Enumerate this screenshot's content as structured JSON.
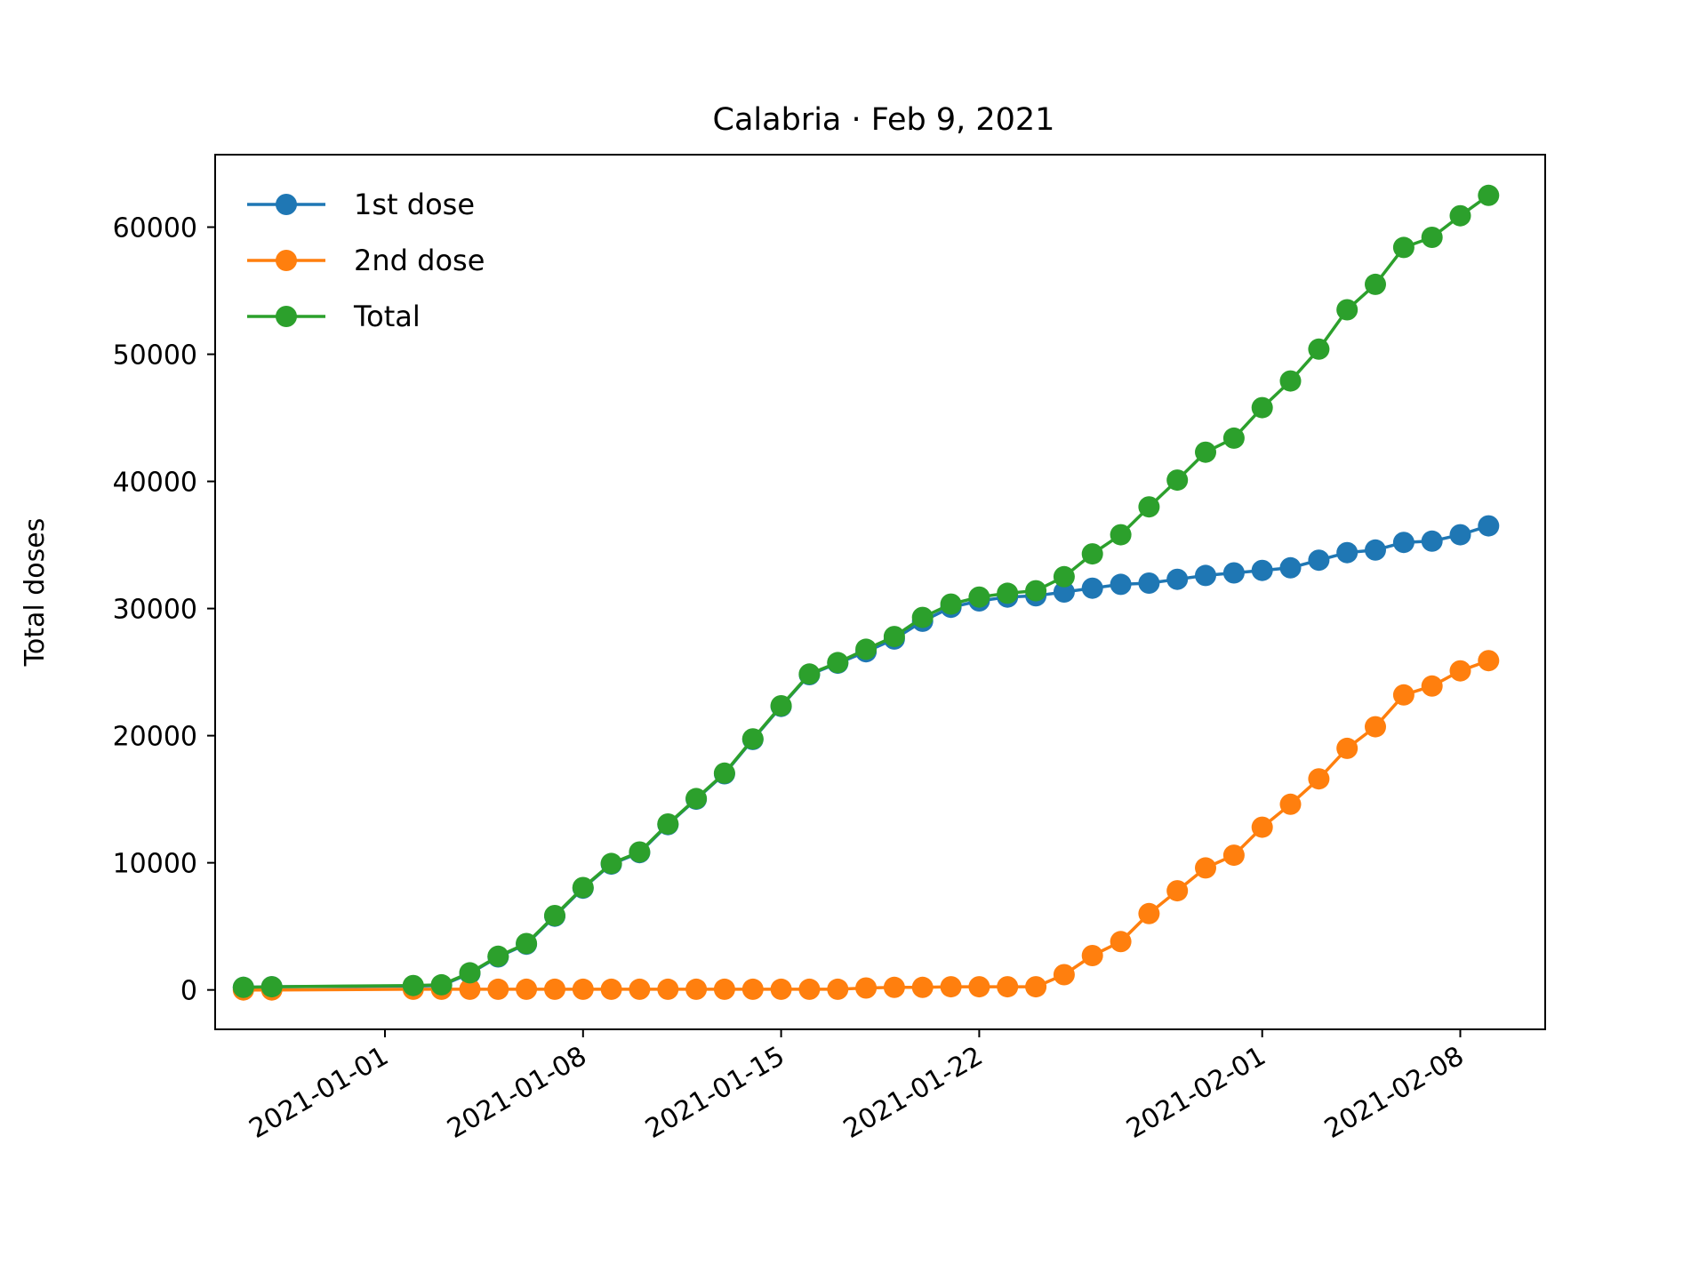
{
  "chart_data": {
    "type": "line",
    "title": "Calabria · Feb 9, 2021",
    "xlabel": "",
    "ylabel": "Total doses",
    "x_ticks": [
      "2021-01-01",
      "2021-01-08",
      "2021-01-15",
      "2021-01-22",
      "2021-02-01",
      "2021-02-08"
    ],
    "y_ticks": [
      0,
      10000,
      20000,
      30000,
      40000,
      50000,
      60000
    ],
    "xlim": [
      "2020-12-26",
      "2021-02-11"
    ],
    "ylim": [
      -3100,
      65700
    ],
    "grid": false,
    "legend_position": "top-left",
    "x": [
      "2020-12-27",
      "2020-12-28",
      "2021-01-02",
      "2021-01-03",
      "2021-01-04",
      "2021-01-05",
      "2021-01-06",
      "2021-01-07",
      "2021-01-08",
      "2021-01-09",
      "2021-01-10",
      "2021-01-11",
      "2021-01-12",
      "2021-01-13",
      "2021-01-14",
      "2021-01-15",
      "2021-01-16",
      "2021-01-17",
      "2021-01-18",
      "2021-01-19",
      "2021-01-20",
      "2021-01-21",
      "2021-01-22",
      "2021-01-23",
      "2021-01-24",
      "2021-01-25",
      "2021-01-26",
      "2021-01-27",
      "2021-01-28",
      "2021-01-29",
      "2021-01-30",
      "2021-01-31",
      "2021-02-01",
      "2021-02-02",
      "2021-02-03",
      "2021-02-04",
      "2021-02-05",
      "2021-02-06",
      "2021-02-07",
      "2021-02-08",
      "2021-02-09"
    ],
    "series": [
      {
        "name": "1st dose",
        "color": "#1f77b4",
        "values": [
          200,
          250,
          300,
          350,
          1300,
          2600,
          3600,
          5800,
          8000,
          9900,
          10800,
          13000,
          15000,
          17000,
          19700,
          22300,
          24800,
          25700,
          26600,
          27600,
          29000,
          30100,
          30600,
          30900,
          31000,
          31300,
          31600,
          31900,
          32000,
          32300,
          32600,
          32800,
          33000,
          33200,
          33800,
          34400,
          34600,
          35200,
          35300,
          35800,
          36500
        ]
      },
      {
        "name": "2nd dose",
        "color": "#ff7f0e",
        "values": [
          0,
          0,
          50,
          50,
          50,
          50,
          50,
          50,
          50,
          50,
          50,
          50,
          50,
          50,
          50,
          50,
          50,
          50,
          150,
          200,
          200,
          250,
          250,
          250,
          250,
          1200,
          2700,
          3800,
          6000,
          7800,
          9600,
          10600,
          12800,
          14600,
          16600,
          19000,
          20700,
          23200,
          23900,
          25100,
          25900
        ]
      },
      {
        "name": "Total",
        "color": "#2ca02c",
        "values": [
          200,
          250,
          350,
          400,
          1350,
          2650,
          3650,
          5850,
          8050,
          9950,
          10850,
          13050,
          15050,
          17050,
          19750,
          22350,
          24850,
          25750,
          26800,
          27800,
          29300,
          30350,
          30900,
          31200,
          31400,
          32500,
          34300,
          35800,
          38000,
          40100,
          42300,
          43400,
          45800,
          47900,
          50400,
          53500,
          55500,
          58400,
          59200,
          60900,
          62500
        ]
      }
    ]
  }
}
